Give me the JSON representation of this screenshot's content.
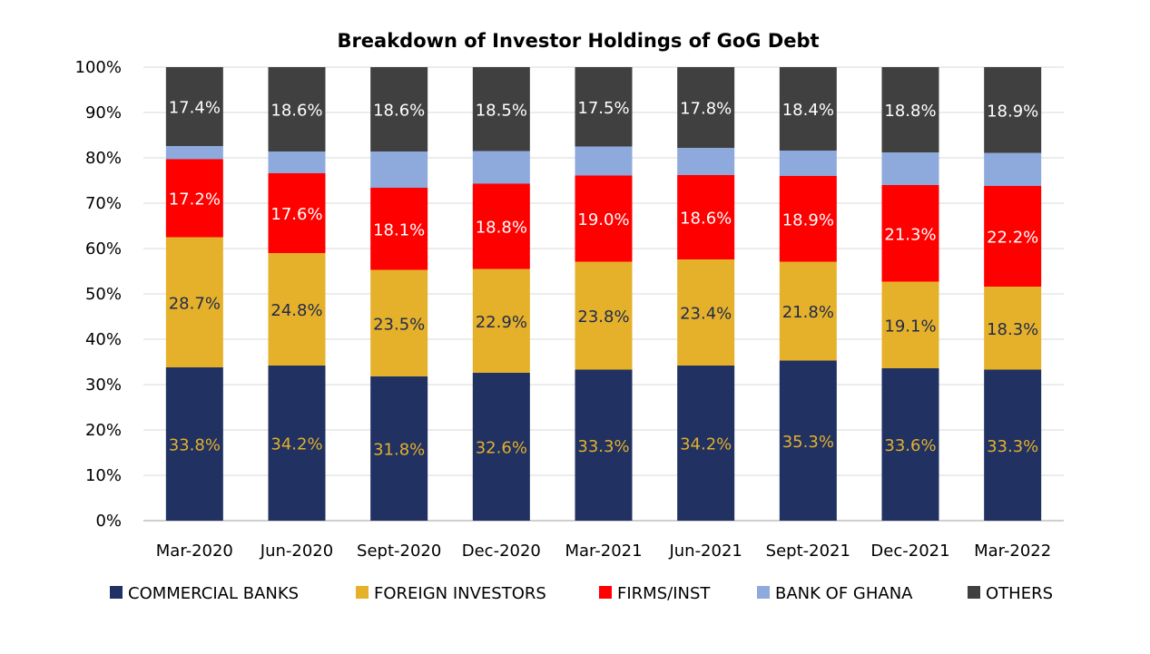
{
  "chart_data": {
    "type": "bar",
    "stacked": true,
    "title": "Breakdown of Investor Holdings of GoG Debt",
    "xlabel": "",
    "ylabel": "",
    "ylim": [
      0,
      100
    ],
    "y_ticks": [
      "0%",
      "10%",
      "20%",
      "30%",
      "40%",
      "50%",
      "60%",
      "70%",
      "80%",
      "90%",
      "100%"
    ],
    "grid": true,
    "legend_position": "bottom",
    "categories": [
      "Mar-2020",
      "Jun-2020",
      "Sept-2020",
      "Dec-2020",
      "Mar-2021",
      "Jun-2021",
      "Sept-2021",
      "Dec-2021",
      "Mar-2022"
    ],
    "series": [
      {
        "name": "COMMERCIAL BANKS",
        "color": "#203162",
        "label_color": "#E3B02A",
        "values": [
          33.8,
          34.2,
          31.8,
          32.6,
          33.3,
          34.2,
          35.3,
          33.6,
          33.3
        ],
        "labels": [
          "33.8%",
          "34.2%",
          "31.8%",
          "32.6%",
          "33.3%",
          "34.2%",
          "35.3%",
          "33.6%",
          "33.3%"
        ]
      },
      {
        "name": "FOREIGN INVESTORS",
        "color": "#E6B12A",
        "label_color": "#1F2A4E",
        "values": [
          28.7,
          24.8,
          23.5,
          22.9,
          23.8,
          23.4,
          21.8,
          19.1,
          18.3
        ],
        "labels": [
          "28.7%",
          "24.8%",
          "23.5%",
          "22.9%",
          "23.8%",
          "23.4%",
          "21.8%",
          "19.1%",
          "18.3%"
        ]
      },
      {
        "name": "FIRMS/INST",
        "color": "#FF0000",
        "label_color": "#FFFFFF",
        "values": [
          17.2,
          17.6,
          18.1,
          18.8,
          19.0,
          18.6,
          18.9,
          21.3,
          22.2
        ],
        "labels": [
          "17.2%",
          "17.6%",
          "18.1%",
          "18.8%",
          "19.0%",
          "18.6%",
          "18.9%",
          "21.3%",
          "22.2%"
        ]
      },
      {
        "name": "BANK OF GHANA",
        "color": "#8EA9DB",
        "label_color": "",
        "values": [
          2.9,
          4.8,
          8.0,
          7.2,
          6.4,
          6.0,
          5.6,
          7.2,
          7.3
        ],
        "labels": []
      },
      {
        "name": "OTHERS",
        "color": "#404040",
        "label_color": "#FFFFFF",
        "values": [
          17.4,
          18.6,
          18.6,
          18.5,
          17.5,
          17.8,
          18.4,
          18.8,
          18.9
        ],
        "labels": [
          "17.4%",
          "18.6%",
          "18.6%",
          "18.5%",
          "17.5%",
          "17.8%",
          "18.4%",
          "18.8%",
          "18.9%"
        ]
      }
    ]
  }
}
